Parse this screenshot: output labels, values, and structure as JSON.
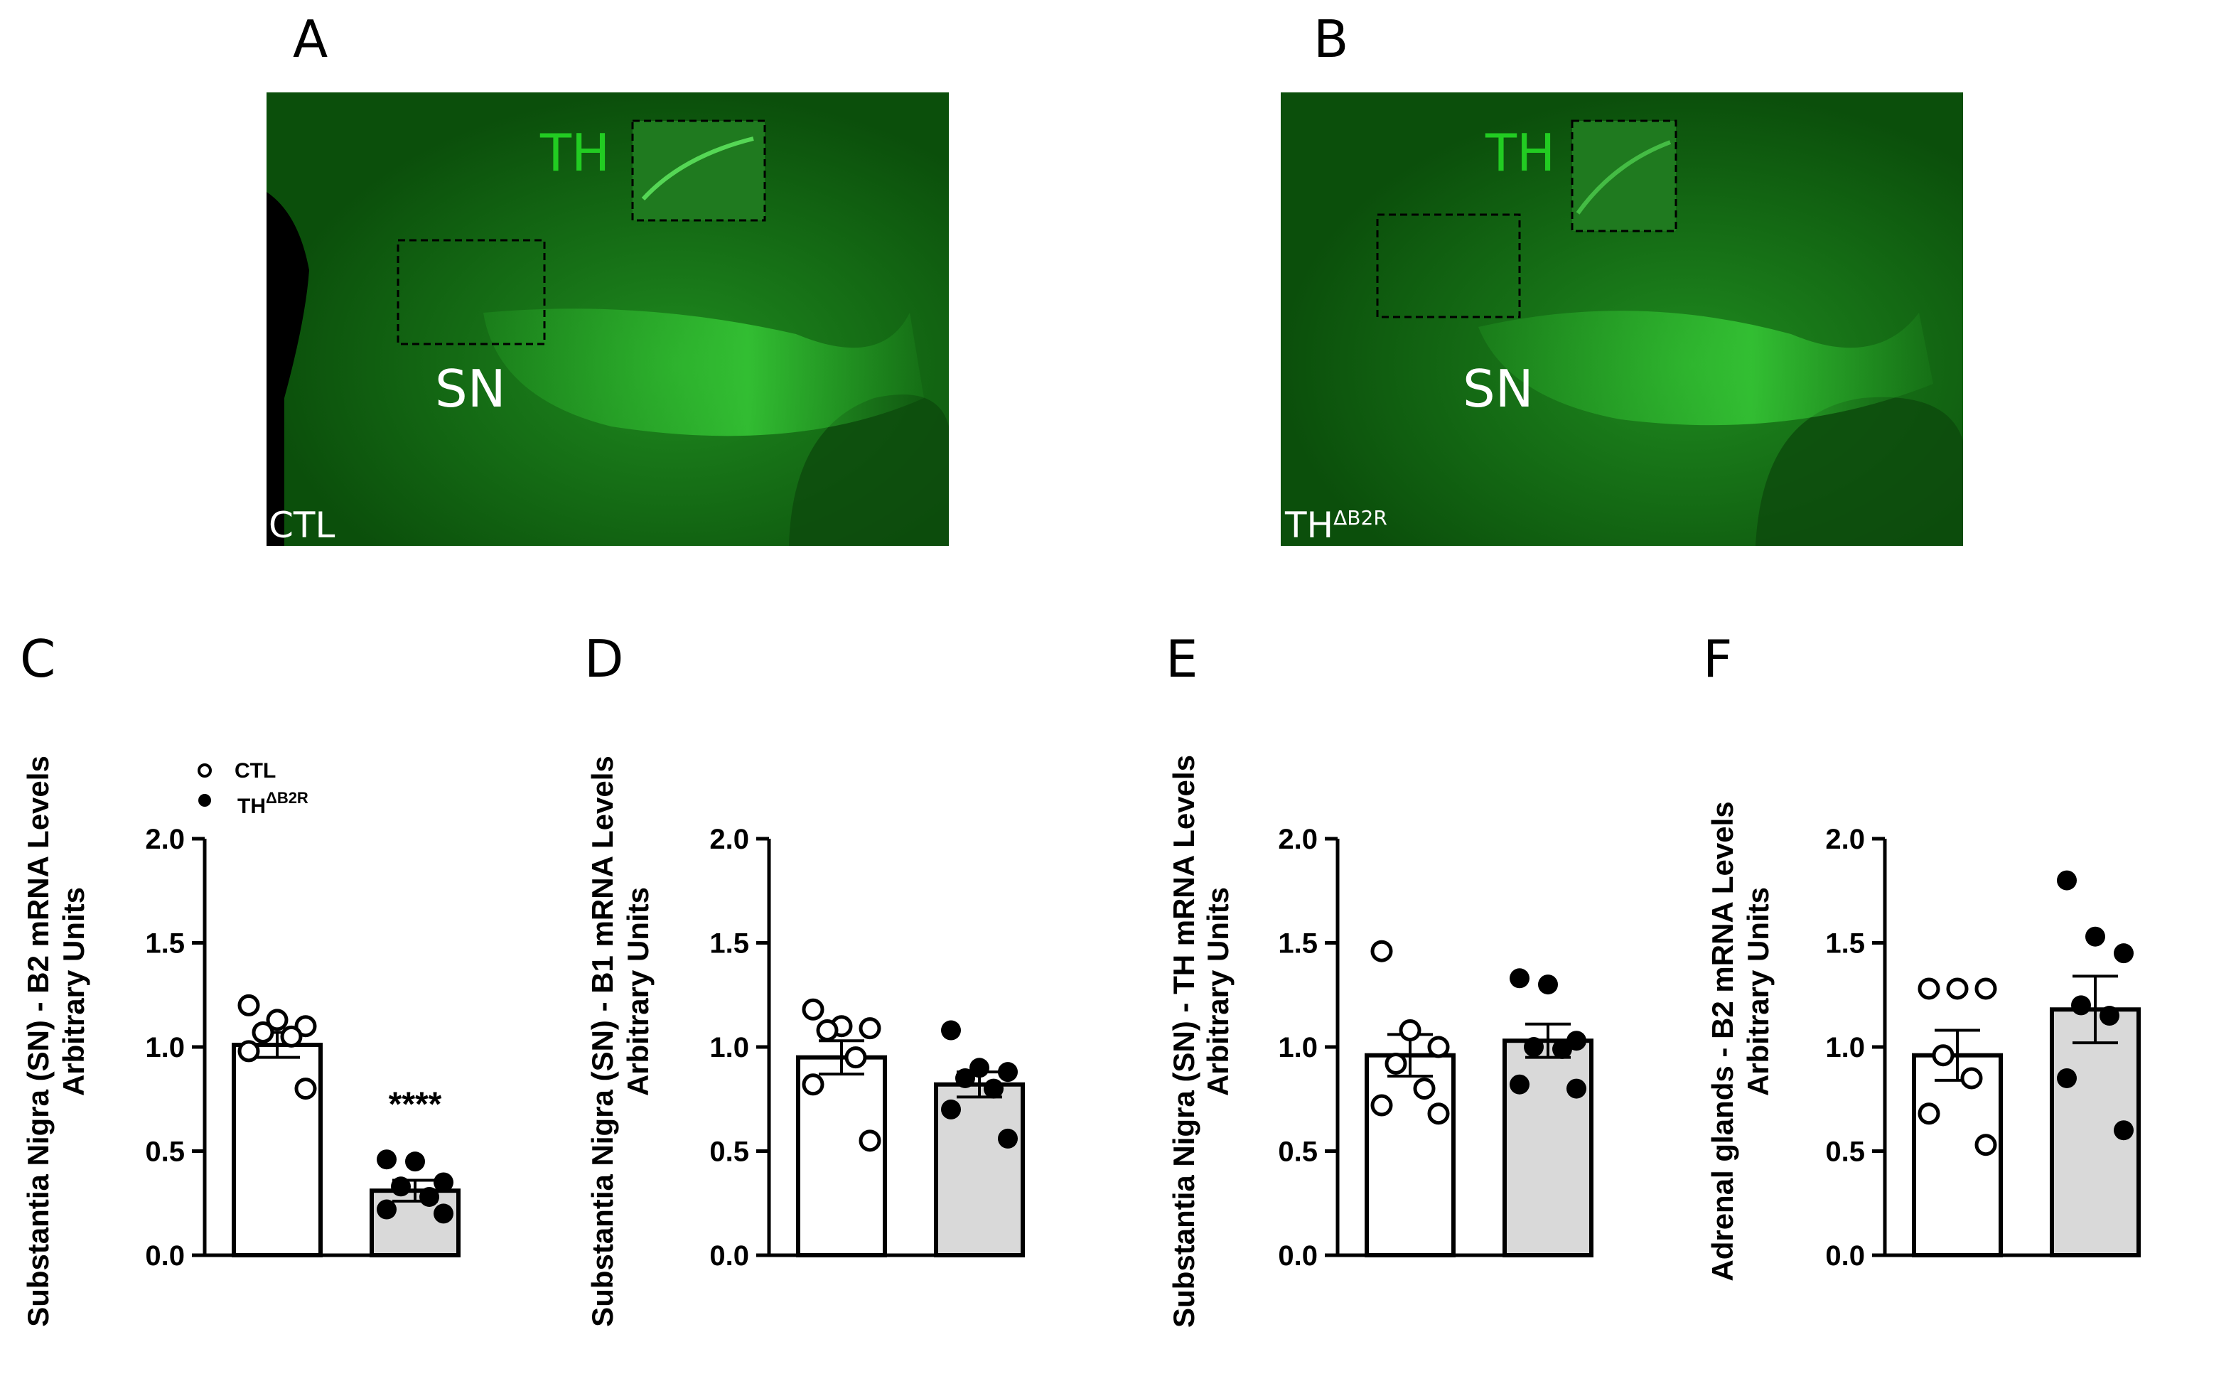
{
  "images": [
    {
      "letter": "A",
      "region_label": "SN",
      "stain_label": "TH",
      "group_label": "CTL",
      "group_sup": ""
    },
    {
      "letter": "B",
      "region_label": "SN",
      "stain_label": "TH",
      "group_label": "TH",
      "group_sup": "ΔB2R"
    }
  ],
  "legend": {
    "ctl": "CTL",
    "th_base": "TH",
    "th_sup": "ΔB2R"
  },
  "colors": {
    "ctl_fill": "#ffffff",
    "thb2r_fill": "#d9d9d9",
    "tissue": "#0a5a0a",
    "th_text": "#22cc22"
  },
  "chart_data": [
    {
      "letter": "C",
      "type": "bar",
      "ylabel_line1": "Substantia Nigra (SN) - B2 mRNA Levels",
      "ylabel_line2": "Arbitrary Units",
      "ylim": [
        0,
        2.0
      ],
      "yticks": [
        "0.0",
        "0.5",
        "1.0",
        "1.5",
        "2.0"
      ],
      "categories": [
        "CTL",
        "THΔB2R"
      ],
      "means": [
        1.01,
        0.31
      ],
      "sem": [
        0.06,
        0.05
      ],
      "points": [
        [
          1.2,
          1.13,
          1.1,
          1.07,
          1.05,
          0.98,
          0.8
        ],
        [
          0.46,
          0.45,
          0.35,
          0.33,
          0.28,
          0.22,
          0.2
        ]
      ],
      "significance": "****"
    },
    {
      "letter": "D",
      "type": "bar",
      "ylabel_line1": "Substantia Nigra (SN) - B1 mRNA Levels",
      "ylabel_line2": "Arbitrary Units",
      "ylim": [
        0,
        2.0
      ],
      "yticks": [
        "0.0",
        "0.5",
        "1.0",
        "1.5",
        "2.0"
      ],
      "categories": [
        "CTL",
        "THΔB2R"
      ],
      "means": [
        0.95,
        0.82
      ],
      "sem": [
        0.08,
        0.06
      ],
      "points": [
        [
          1.18,
          1.1,
          1.09,
          1.08,
          0.95,
          0.82,
          0.55
        ],
        [
          1.08,
          0.9,
          0.88,
          0.85,
          0.8,
          0.7,
          0.56
        ]
      ],
      "significance": ""
    },
    {
      "letter": "E",
      "type": "bar",
      "ylabel_line1": "Substantia Nigra (SN) - TH mRNA Levels",
      "ylabel_line2": "Arbitrary Units",
      "ylim": [
        0,
        2.0
      ],
      "yticks": [
        "0.0",
        "0.5",
        "1.0",
        "1.5",
        "2.0"
      ],
      "categories": [
        "CTL",
        "THΔB2R"
      ],
      "means": [
        0.96,
        1.03
      ],
      "sem": [
        0.1,
        0.08
      ],
      "points": [
        [
          1.46,
          1.08,
          1.0,
          0.92,
          0.8,
          0.72,
          0.68
        ],
        [
          1.33,
          1.3,
          1.03,
          1.0,
          0.99,
          0.82,
          0.8
        ]
      ],
      "significance": ""
    },
    {
      "letter": "F",
      "type": "bar",
      "ylabel_line1": "Adrenal glands - B2 mRNA Levels",
      "ylabel_line2": "Arbitrary Units",
      "ylim": [
        0,
        2.0
      ],
      "yticks": [
        "0.0",
        "0.5",
        "1.0",
        "1.5",
        "2.0"
      ],
      "categories": [
        "CTL",
        "THΔB2R"
      ],
      "means": [
        0.96,
        1.18
      ],
      "sem": [
        0.12,
        0.16
      ],
      "points": [
        [
          1.28,
          1.28,
          1.28,
          0.96,
          0.85,
          0.68,
          0.53
        ],
        [
          1.8,
          1.53,
          1.45,
          1.2,
          1.15,
          0.85,
          0.6
        ]
      ],
      "significance": ""
    }
  ]
}
